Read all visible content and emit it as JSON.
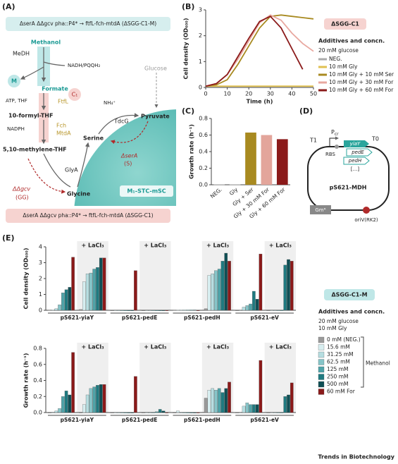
{
  "panel_labels": [
    "(A)",
    "(B)",
    "(C)",
    "(D)",
    "(E)"
  ],
  "diagram_a": {
    "strain_top": "ΔserA ΔΔgcv pha::P4* → ftfL-fch-mtdA (ΔSGG-C1-M)",
    "strain_bottom": "ΔserA ΔΔgcv pha::P4* → ftfL-fch-mtdA (ΔSGG-C1)",
    "methanol": "Methanol",
    "medh": "MeDH",
    "m": "M",
    "nadh": "NADH/PQQH₂",
    "formate": "Formate",
    "ftfl": "FtfL",
    "c1": "C₁",
    "atp": "ATP, THF",
    "formyl_thf": "10-formyl-THF",
    "nadph": "NADPH",
    "fch": "Fch",
    "mtda": "MtdA",
    "methylene_thf": "5,10-methylene-THF",
    "glucose": "Glucose",
    "nh4": "NH₄⁺",
    "pyruvate": "Pyruvate",
    "tdcg": "TdcG",
    "serine": "Serine",
    "delta_sera": "ΔserA",
    "s": "(S)",
    "glya": "GlyA",
    "delta_gcv": "ΔΔgcv",
    "gg": "(GG)",
    "glycine": "Glycine",
    "cell": "M₁-STC-mSC"
  },
  "diagram_d": {
    "t1": "T1",
    "promoter": "P",
    "promoter_sub": "cr",
    "t0": "T0",
    "genes": [
      "yiaY",
      "pedE",
      "pedH",
      "[...]"
    ],
    "rbs": "RBS",
    "plasmid": "pS621-MDH",
    "marker": "Gmᴿ",
    "ori": "oriV(RK2)"
  },
  "footer": "Trends in Biotechnology",
  "chart_data": [
    {
      "type": "line",
      "y_label": "Cell density (OD₆₀₀)",
      "x_label": "Time (h)",
      "badge": "ΔSGG-C1",
      "legend_title": "Additives and concn.",
      "legend_notes": [
        "20 mM glucose"
      ],
      "x": [
        0,
        5,
        10,
        15,
        20,
        25,
        30,
        35,
        40,
        45,
        50
      ],
      "xlim": [
        0,
        50
      ],
      "xticks": [
        0,
        10,
        20,
        30,
        40,
        50
      ],
      "ylim": [
        0,
        3
      ],
      "yticks": [
        0,
        1,
        2,
        3
      ],
      "series": [
        {
          "name": "NEG.",
          "color": "#aaaaaa",
          "values": [
            0.03,
            0.03,
            0.03,
            0.03,
            0.03,
            0.03,
            0.03,
            0.03,
            0.03,
            0.03,
            0.03
          ]
        },
        {
          "name": "10 mM Gly",
          "color": "#e0c050",
          "values": [
            0.05,
            0.05,
            0.05,
            0.05,
            0.05,
            0.05,
            0.05,
            0.05,
            0.05,
            0.05,
            0.05
          ]
        },
        {
          "name": "10 mM Gly + 10 mM Ser",
          "color": "#a88a20",
          "values": [
            0.05,
            0.1,
            0.3,
            0.9,
            1.6,
            2.3,
            2.75,
            2.8,
            2.75,
            2.7,
            2.65
          ]
        },
        {
          "name": "10 mM Gly + 30 mM For",
          "color": "#e8a8a0",
          "values": [
            0.05,
            0.15,
            0.5,
            1.1,
            1.8,
            2.5,
            2.8,
            2.6,
            2.1,
            1.7,
            1.4
          ]
        },
        {
          "name": "10 mM Gly + 60 mM For",
          "color": "#8b1a1a",
          "values": [
            0.05,
            0.15,
            0.5,
            1.2,
            1.9,
            2.55,
            2.75,
            2.3,
            1.5,
            0.7,
            null
          ]
        }
      ]
    },
    {
      "type": "bar",
      "y_label": "Growth rate (h⁻¹)",
      "categories": [
        "NEG.",
        "Gly",
        "Gly + Ser",
        "Gly + 30 mM For",
        "Gly + 60 mM For"
      ],
      "values": [
        0.005,
        0.005,
        0.63,
        0.6,
        0.55
      ],
      "colors": [
        "#aaaaaa",
        "#aaaaaa",
        "#a88a20",
        "#e3a59b",
        "#8b1a1a"
      ],
      "ylim": [
        0,
        0.8
      ],
      "yticks": [
        {
          "value": 0,
          "label": "0.0"
        },
        0.2,
        0.4,
        0.6,
        0.8
      ]
    },
    {
      "type": "grouped_bar",
      "y_label": "Cell density (OD₆₀₀)",
      "badge": "ΔSGG-C1-M",
      "legend_title": "Additives and concn.",
      "legend_notes": [
        "20 mM glucose",
        "10 mM Gly"
      ],
      "legend_group": "Methanol",
      "categories": [
        "pS621-yiaY",
        null,
        "pS621-pedE",
        null,
        "pS621-pedH",
        null,
        "pS621-eV",
        null
      ],
      "shaded": [
        false,
        true,
        false,
        true,
        false,
        true,
        false,
        true
      ],
      "shade_label": "+ LaCl₃",
      "ylim": [
        0,
        4
      ],
      "yticks": [
        0,
        1,
        2,
        3,
        4
      ],
      "series": [
        {
          "name": "0 mM (NEG.)",
          "color": "#9a9a9a",
          "values": [
            0.02,
            0.05,
            0,
            0,
            0.02,
            0.1,
            0,
            0
          ]
        },
        {
          "name": "15.6 mM",
          "color": "#d7eef0",
          "values": [
            0.03,
            1.8,
            0,
            0,
            0.02,
            2.2,
            0,
            0
          ]
        },
        {
          "name": "31.25 mM",
          "color": "#b6dde0",
          "values": [
            0.1,
            2.3,
            0,
            0,
            0.02,
            2.3,
            0.2,
            0
          ]
        },
        {
          "name": "62.5 mM",
          "color": "#86c4c8",
          "values": [
            0.35,
            2.35,
            0,
            0,
            0.02,
            2.5,
            0.3,
            0
          ]
        },
        {
          "name": "125 mM",
          "color": "#4fa3a8",
          "values": [
            1.1,
            2.6,
            0,
            0,
            0.02,
            2.6,
            0.4,
            0
          ]
        },
        {
          "name": "250 mM",
          "color": "#1f7a80",
          "values": [
            1.3,
            2.7,
            0,
            0,
            0.02,
            3.1,
            1.2,
            2.85
          ]
        },
        {
          "name": "500 mM",
          "color": "#0f4f55",
          "values": [
            1.45,
            3.3,
            0,
            0,
            0.02,
            3.6,
            0.7,
            3.2
          ]
        },
        {
          "name": "60 mM For",
          "color": "#8b1a1a",
          "values": [
            3.35,
            3.3,
            2.5,
            0,
            0,
            3.1,
            3.55,
            3.1
          ]
        }
      ]
    },
    {
      "type": "grouped_bar",
      "y_label": "Growth rate (h⁻¹)",
      "categories": [
        "pS621-yiaY",
        null,
        "pS621-pedE",
        null,
        "pS621-pedH",
        null,
        "pS621-eV",
        null
      ],
      "shaded": [
        false,
        true,
        false,
        true,
        false,
        true,
        false,
        true
      ],
      "shade_label": "+ LaCl₃",
      "ylim": [
        0,
        0.8
      ],
      "yticks": [
        {
          "value": 0,
          "label": "0.0"
        },
        0.2,
        0.4,
        0.6,
        0.8
      ],
      "series": [
        {
          "color": "#9a9a9a",
          "values": [
            0,
            0,
            0,
            0,
            0,
            0.18,
            0,
            0
          ]
        },
        {
          "color": "#d7eef0",
          "values": [
            0,
            0.1,
            0,
            0,
            0.02,
            0.28,
            0,
            0
          ]
        },
        {
          "color": "#b6dde0",
          "values": [
            0.02,
            0.22,
            0,
            0,
            0,
            0.3,
            0.08,
            0
          ]
        },
        {
          "color": "#86c4c8",
          "values": [
            0.05,
            0.3,
            0,
            0,
            0,
            0.28,
            0.12,
            0
          ]
        },
        {
          "color": "#4fa3a8",
          "values": [
            0.2,
            0.32,
            0,
            0.01,
            0,
            0.3,
            0.1,
            0
          ]
        },
        {
          "color": "#1f7a80",
          "values": [
            0.27,
            0.34,
            0,
            0.04,
            0,
            0.25,
            0.1,
            0.2
          ]
        },
        {
          "color": "#0f4f55",
          "values": [
            0.22,
            0.35,
            0,
            0.02,
            0,
            0.3,
            0.1,
            0.22
          ]
        },
        {
          "color": "#8b1a1a",
          "values": [
            0.75,
            0.35,
            0.45,
            0,
            0,
            0.38,
            0.65,
            0.37
          ]
        }
      ]
    }
  ]
}
